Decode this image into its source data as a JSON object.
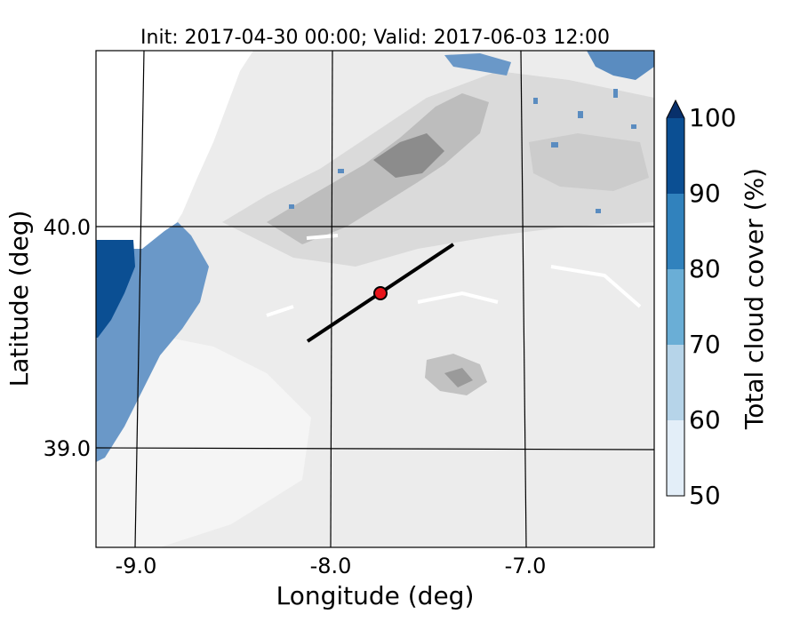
{
  "title": "Init: 2017-04-30 00:00; Valid: 2017-06-03 12:00",
  "axes": {
    "xlabel": "Longitude (deg)",
    "ylabel": "Latitude (deg)",
    "xticks": [
      "-9.0",
      "-8.0",
      "-7.0"
    ],
    "yticks": [
      "40.0",
      "39.0"
    ]
  },
  "colorbar": {
    "label": "Total cloud cover (%)",
    "ticks": [
      "50",
      "60",
      "70",
      "80",
      "90",
      "100"
    ],
    "colors": [
      "#e3eef8",
      "#b6d4e9",
      "#6aaed6",
      "#3182bd",
      "#0b4f93"
    ],
    "extend_color": "#08306b"
  },
  "map": {
    "lon_range": [
      -9.25,
      -6.35
    ],
    "lat_range": [
      38.55,
      40.8
    ],
    "cross_section": {
      "start": [
        -8.12,
        39.48
      ],
      "end": [
        -7.37,
        39.91
      ]
    },
    "point": {
      "lon": -7.75,
      "lat": 39.69,
      "color": "#e8141b"
    },
    "terrain_colors": [
      "#f6f6f6",
      "#ececec",
      "#dcdcdc",
      "#c8c8c8",
      "#a8a8a8",
      "#707070"
    ]
  }
}
